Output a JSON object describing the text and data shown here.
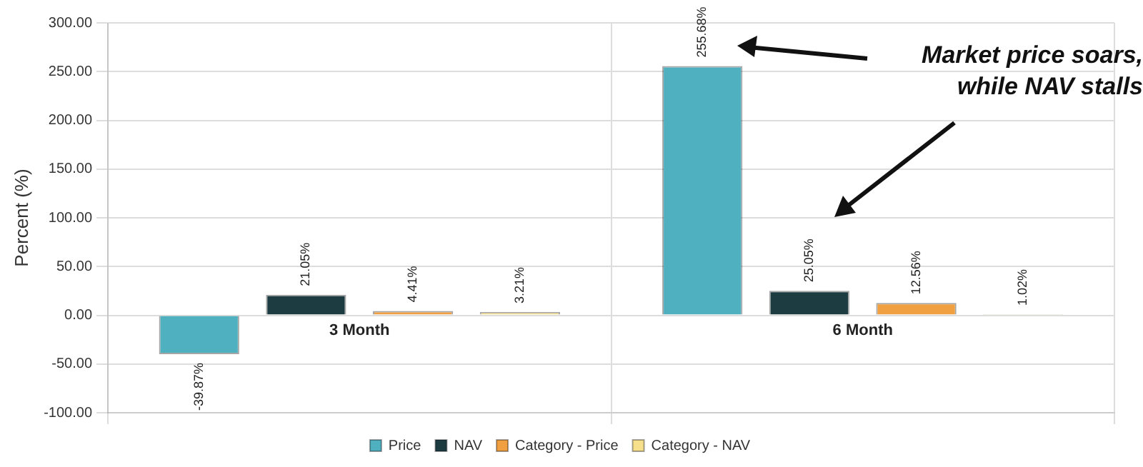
{
  "chart_data": {
    "type": "bar",
    "categories": [
      "3 Month",
      "6 Month"
    ],
    "series": [
      {
        "name": "Price",
        "color": "#4fb0c0",
        "values": [
          -39.87,
          255.68
        ]
      },
      {
        "name": "NAV",
        "color": "#1d3c42",
        "values": [
          21.05,
          25.05
        ]
      },
      {
        "name": "Category - Price",
        "color": "#f0a040",
        "values": [
          4.41,
          12.56
        ]
      },
      {
        "name": "Category - NAV",
        "color": "#f7e08c",
        "values": [
          3.21,
          1.02
        ]
      }
    ],
    "ylabel": "Percent (%)",
    "ylim": [
      -100,
      300
    ],
    "yticks": [
      {
        "value": -100,
        "label": "-100.00"
      },
      {
        "value": -50,
        "label": "-50.00"
      },
      {
        "value": 0,
        "label": "0.00"
      },
      {
        "value": 50,
        "label": "50.00"
      },
      {
        "value": 100,
        "label": "100.00"
      },
      {
        "value": 150,
        "label": "150.00"
      },
      {
        "value": 200,
        "label": "200.00"
      },
      {
        "value": 250,
        "label": "250.00"
      },
      {
        "value": 300,
        "label": "300.00"
      }
    ],
    "value_labels": [
      [
        "-39.87%",
        "255.68%"
      ],
      [
        "21.05%",
        "25.05%"
      ],
      [
        "4.41%",
        "12.56%"
      ],
      [
        "3.21%",
        "1.02%"
      ]
    ],
    "grid": true,
    "legend": "bottom",
    "annotations": [
      "Market price soars, while NAV stalls"
    ]
  }
}
